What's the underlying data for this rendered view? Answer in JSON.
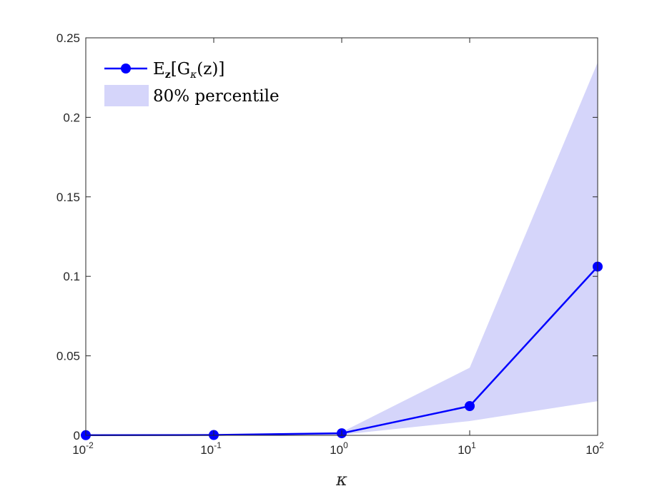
{
  "chart_data": {
    "type": "line",
    "x_scale": "log",
    "x": [
      0.01,
      0.1,
      1,
      10,
      100
    ],
    "x_tick_values": [
      0.01,
      0.1,
      1,
      10,
      100
    ],
    "x_tick_bases": [
      "10",
      "10",
      "10",
      "10",
      "10"
    ],
    "x_tick_exponents": [
      "-2",
      "-1",
      "0",
      "1",
      "2"
    ],
    "xlabel": "κ",
    "ylabel": "",
    "title": "",
    "xlim": [
      0.01,
      100
    ],
    "ylim": [
      0,
      0.25
    ],
    "y_ticks": [
      0,
      0.05,
      0.1,
      0.15,
      0.2,
      0.25
    ],
    "y_tick_labels": [
      "0",
      "0.05",
      "0.1",
      "0.15",
      "0.2",
      "0.25"
    ],
    "grid": false,
    "legend_position": "top-left",
    "series": [
      {
        "name": "Ez[Gκ(z)]",
        "legend_main": "E",
        "legend_sub": "z",
        "legend_rest": "[G",
        "legend_sub2": "κ",
        "legend_tail": "(z)]",
        "values": [
          0.0001,
          0.0002,
          0.0013,
          0.0184,
          0.1061
        ],
        "color": "#0000ff",
        "marker": "circle"
      }
    ],
    "band": {
      "name": "80% percentile",
      "lower": [
        0.0001,
        0.0001,
        0.0004,
        0.009,
        0.0215
      ],
      "upper": [
        0.0002,
        0.0005,
        0.002,
        0.0425,
        0.2345
      ],
      "color": "#d5d5fa"
    }
  }
}
